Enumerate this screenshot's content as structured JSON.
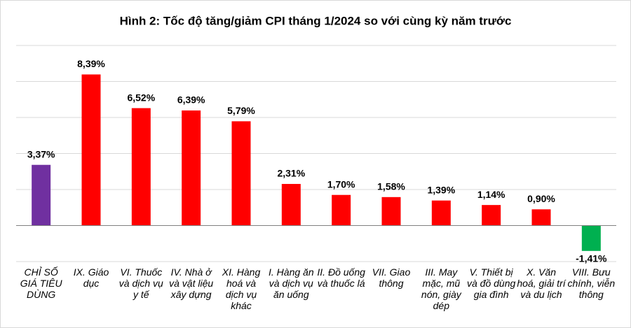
{
  "chart_data": {
    "type": "bar",
    "title": "Hình 2: Tốc độ tăng/giảm CPI tháng 1/2024 so với cùng kỳ năm trước",
    "categories": [
      "CHỈ SỐ GIÁ TIÊU DÙNG",
      "IX. Giáo dục",
      "VI. Thuốc và dịch vụ y tế",
      "IV. Nhà ở và vật liệu xây dựng",
      "XI. Hàng hoá và dịch vụ khác",
      "I. Hàng ăn và dịch vụ ăn uống",
      "II. Đồ uống và thuốc lá",
      "VII. Giao thông",
      "III. May mặc, mũ nón, giày dép",
      "V. Thiết bị và đồ dùng gia đình",
      "X. Văn hoá, giải trí và du lịch",
      "VIII. Bưu chính, viễn thông"
    ],
    "values": [
      3.37,
      8.39,
      6.52,
      6.39,
      5.79,
      2.31,
      1.7,
      1.58,
      1.39,
      1.14,
      0.9,
      -1.41
    ],
    "value_labels": [
      "3,37%",
      "8,39%",
      "6,52%",
      "6,39%",
      "5,79%",
      "2,31%",
      "1,70%",
      "1,58%",
      "1,39%",
      "1,14%",
      "0,90%",
      "-1,41%"
    ],
    "colors": [
      "#7030a0",
      "#ff0000",
      "#ff0000",
      "#ff0000",
      "#ff0000",
      "#ff0000",
      "#ff0000",
      "#ff0000",
      "#ff0000",
      "#ff0000",
      "#ff0000",
      "#00b050"
    ],
    "ylim": [
      -2,
      10
    ],
    "yticks": [
      -2,
      0,
      2,
      4,
      6,
      8,
      10
    ],
    "grid": true
  }
}
